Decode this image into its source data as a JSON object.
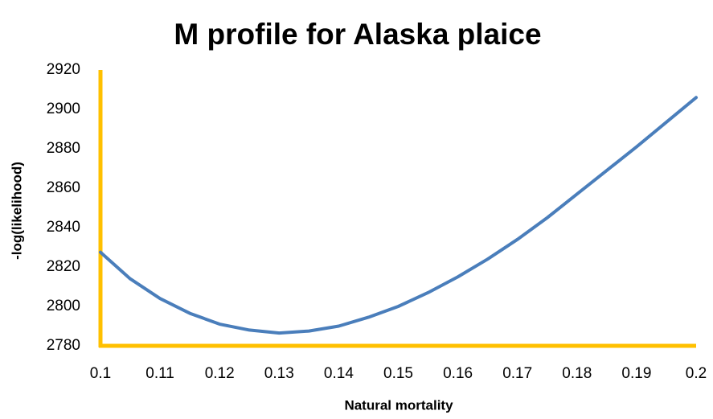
{
  "chart_data": {
    "type": "line",
    "title": "M profile for Alaska plaice",
    "x_label": "Natural mortality",
    "y_label": "-log(likelihood)",
    "x": [
      0.1,
      0.105,
      0.11,
      0.115,
      0.12,
      0.125,
      0.13,
      0.135,
      0.14,
      0.145,
      0.15,
      0.155,
      0.16,
      0.165,
      0.17,
      0.175,
      0.18,
      0.185,
      0.19,
      0.195,
      0.2
    ],
    "series": [
      {
        "name": "-log(likelihood)",
        "color": "#4a7ebb",
        "values": [
          2827.5,
          2814,
          2804,
          2796.5,
          2791,
          2788,
          2786.5,
          2787.5,
          2790,
          2794.5,
          2800,
          2807,
          2815,
          2824,
          2834,
          2845,
          2857,
          2869,
          2881,
          2893.5,
          2906
        ]
      }
    ],
    "xlim": [
      0.1,
      0.2
    ],
    "xticks": [
      0.1,
      0.11,
      0.12,
      0.13,
      0.14,
      0.15,
      0.16,
      0.17,
      0.18,
      0.19,
      0.2
    ],
    "ylim": [
      2780,
      2920
    ],
    "yticks": [
      2780,
      2800,
      2820,
      2840,
      2860,
      2880,
      2900,
      2920
    ],
    "axis_color": "#ffc000",
    "grid": false
  }
}
